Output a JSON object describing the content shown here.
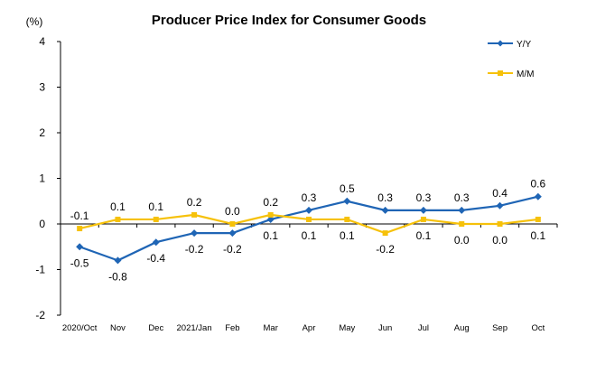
{
  "chart_data": {
    "type": "line",
    "title": "Producer Price Index for Consumer Goods",
    "ylabel": "(%)",
    "xlabel": "",
    "ylim": [
      -2,
      4
    ],
    "yticks": [
      -2,
      -1,
      0,
      1,
      2,
      3,
      4
    ],
    "grid": false,
    "legend_position": "top-right",
    "categories": [
      "2020/Oct",
      "Nov",
      "Dec",
      "2021/Jan",
      "Feb",
      "Mar",
      "Apr",
      "May",
      "Jun",
      "Jul",
      "Aug",
      "Sep",
      "Oct"
    ],
    "series": [
      {
        "name": "Y/Y",
        "color": "#1f65b5",
        "marker": "diamond",
        "values": [
          -0.5,
          -0.8,
          -0.4,
          -0.2,
          -0.2,
          0.1,
          0.3,
          0.5,
          0.3,
          0.3,
          0.3,
          0.4,
          0.6
        ],
        "labels": [
          "-0.5",
          "-0.8",
          "-0.4",
          "-0.2",
          "-0.2",
          "0.1",
          "0.3",
          "0.5",
          "0.3",
          "0.3",
          "0.3",
          "0.4",
          "0.6"
        ]
      },
      {
        "name": "M/M",
        "color": "#f6c10a",
        "marker": "square",
        "values": [
          -0.1,
          0.1,
          0.1,
          0.2,
          0.0,
          0.2,
          0.1,
          0.1,
          -0.2,
          0.1,
          0.0,
          0.0,
          0.1
        ],
        "labels": [
          "-0.1",
          "0.1",
          "0.1",
          "0.2",
          "0.0",
          "0.2",
          "0.1",
          "0.1",
          "-0.2",
          "0.1",
          "0.0",
          "0.0",
          "0.1"
        ]
      }
    ]
  }
}
